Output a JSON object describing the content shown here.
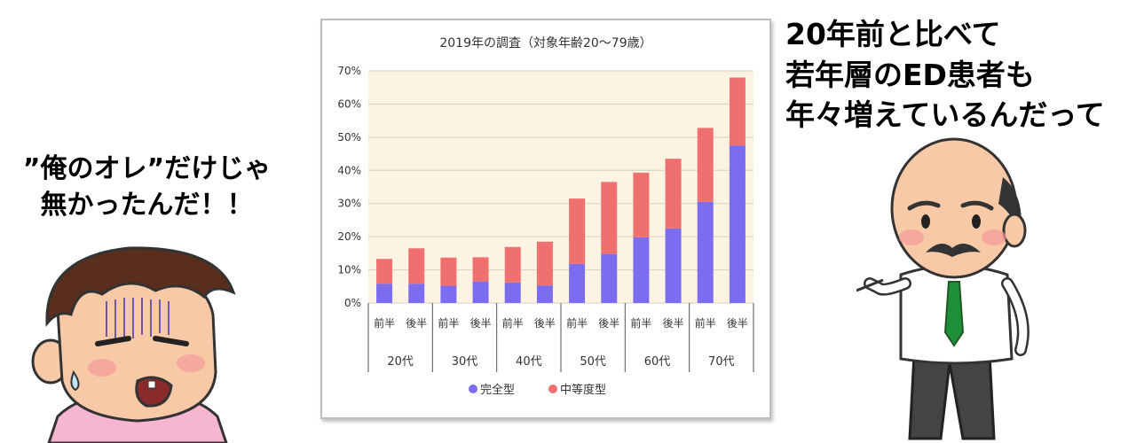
{
  "speech_left": {
    "lines": [
      "”俺のオレ”だけじゃ",
      "無かったんだ！！"
    ]
  },
  "speech_right": {
    "lines": [
      "20年前と比べて",
      "若年層のED患者も",
      "年々増えているんだって"
    ]
  },
  "colors": {
    "series_complete": "#7b6cf0",
    "series_moderate": "#f07070",
    "plot_background": "#fdf3e3",
    "gridline": "#d9cfc0"
  },
  "chart_data": {
    "type": "bar",
    "stacked": true,
    "title": "2019年の調査（対象年齢20～79歳）",
    "categories": [
      "前半",
      "後半",
      "前半",
      "後半",
      "前半",
      "後半",
      "前半",
      "後半",
      "前半",
      "後半",
      "前半",
      "後半"
    ],
    "groups": [
      "20代",
      "30代",
      "40代",
      "50代",
      "60代",
      "70代"
    ],
    "series": [
      {
        "name": "完全型",
        "color": "#7b6cf0",
        "values": [
          5.8,
          5.8,
          5.2,
          6.5,
          6.2,
          5.3,
          11.8,
          14.8,
          19.8,
          22.5,
          30.5,
          47.5
        ]
      },
      {
        "name": "中等度型",
        "color": "#f07070",
        "values": [
          7.5,
          10.7,
          8.5,
          7.3,
          10.7,
          13.2,
          19.7,
          21.7,
          19.5,
          21.0,
          22.3,
          20.5
        ]
      }
    ],
    "y_ticks": [
      "0%",
      "10%",
      "20%",
      "30%",
      "40%",
      "50%",
      "60%",
      "70%"
    ],
    "ylim": [
      0,
      70
    ],
    "grid": true,
    "legend_position": "bottom"
  }
}
